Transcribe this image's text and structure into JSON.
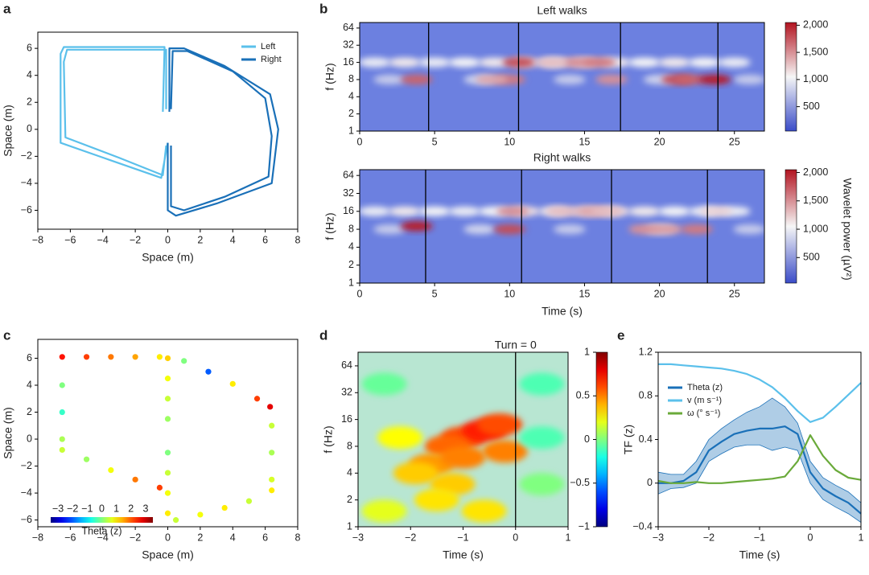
{
  "chart_data": [
    {
      "type": "line",
      "label": "a",
      "xlabel": "Space (m)",
      "ylabel": "Space (m)",
      "xlim": [
        -8,
        8
      ],
      "ylim": [
        -7.4,
        7.2
      ],
      "xticks": [
        {
          "value": -8,
          "label": "−8"
        },
        {
          "value": -6,
          "label": "−6"
        },
        {
          "value": -4,
          "label": "−4"
        },
        {
          "value": -2,
          "label": "−2"
        },
        0,
        2,
        4,
        6,
        8
      ],
      "yticks": [
        {
          "value": -6,
          "label": "−6"
        },
        {
          "value": -4,
          "label": "−4"
        },
        {
          "value": -2,
          "label": "−2"
        },
        0,
        2,
        4,
        6
      ],
      "legend": "upper right",
      "series": [
        {
          "name": "Left",
          "color": "#5bc0eb",
          "x": [
            -0.3,
            -0.2,
            -6.4,
            -6.6,
            -6.6,
            -3.5,
            -0.4,
            0,
            null,
            -0.1,
            -0.1,
            -6.2,
            -6.4,
            -6.3,
            -3,
            -0.3,
            -0.1
          ],
          "values": [
            1.3,
            6.1,
            6.1,
            5.6,
            -1,
            -2.3,
            -3.6,
            -1,
            null,
            1.5,
            5.9,
            5.9,
            5,
            -0.6,
            -2.1,
            -3.4,
            -1.2
          ]
        },
        {
          "name": "Right",
          "color": "#1a70b8",
          "x": [
            0.1,
            0.1,
            1,
            3.5,
            6.3,
            6.8,
            6.4,
            3,
            0.5,
            0,
            0,
            null,
            0.2,
            0.3,
            1.2,
            4,
            6,
            6.4,
            6.2,
            3.5,
            1,
            0.2,
            0.2
          ],
          "values": [
            1.3,
            6,
            6,
            4.7,
            2.6,
            0,
            -4,
            -5.5,
            -6.4,
            -6,
            -1,
            null,
            1.5,
            5.8,
            5.8,
            4.3,
            2.3,
            -0.5,
            -3.5,
            -5,
            -6,
            -5.7,
            -1.2
          ]
        }
      ]
    },
    {
      "type": "heatmap",
      "label": "b",
      "title": "Left walks",
      "ylabel": "f (Hz)",
      "colormap": "coolwarm",
      "ylog": true,
      "xlim": [
        0,
        27
      ],
      "ylim": [
        1,
        80
      ],
      "xticks": [
        0,
        5,
        10,
        15,
        20,
        25
      ],
      "yticks": [
        1,
        2,
        4,
        8,
        16,
        32,
        64
      ],
      "turns": [
        4.6,
        10.6,
        17.4,
        23.9
      ],
      "hotspots": {
        "x": [
          1,
          3,
          5,
          7,
          9,
          11,
          13,
          15,
          17,
          19,
          21,
          23,
          25,
          2,
          8,
          14,
          20,
          26,
          3.8,
          10,
          10.6,
          14.5,
          16,
          16.8,
          21.2,
          22,
          23.7,
          12.8,
          8.8
        ],
        "f": [
          16,
          16,
          16,
          16,
          16,
          16,
          16,
          16,
          16,
          16,
          16,
          16,
          16,
          8,
          8,
          8,
          8,
          8,
          8,
          8,
          16,
          16,
          16,
          8,
          8,
          8,
          8,
          16,
          8
        ],
        "values": [
          1000,
          1100,
          1000,
          1050,
          1100,
          1200,
          1100,
          1150,
          1100,
          1050,
          1100,
          1050,
          1000,
          800,
          850,
          800,
          850,
          800,
          1700,
          1600,
          1800,
          1500,
          1600,
          1500,
          1800,
          1700,
          2000,
          1300,
          1400
        ]
      },
      "colorbar": {
        "lim": [
          50,
          2050
        ],
        "ticks": [
          500,
          {
            "value": 1000,
            "label": "1,000"
          },
          {
            "value": 1500,
            "label": "1,500"
          },
          {
            "value": 2000,
            "label": "2,000"
          }
        ]
      }
    },
    {
      "type": "heatmap",
      "title": "Right walks",
      "ylabel": "f (Hz)",
      "xlabel": "Time (s)",
      "colormap": "coolwarm",
      "ylog": true,
      "xlim": [
        0,
        27
      ],
      "ylim": [
        1,
        80
      ],
      "xticks": [
        0,
        5,
        10,
        15,
        20,
        25
      ],
      "yticks": [
        1,
        2,
        4,
        8,
        16,
        32,
        64
      ],
      "turns": [
        4.4,
        10.8,
        16.8,
        23.2
      ],
      "hotspots": {
        "x": [
          1,
          3,
          5,
          7,
          9,
          11,
          13,
          15,
          17,
          19,
          21,
          23,
          25,
          2,
          8,
          14,
          20,
          26,
          3.8,
          10,
          10.2,
          13.5,
          15.5,
          16.5,
          19,
          20.5,
          22.5,
          23.8
        ],
        "f": [
          16,
          16,
          16,
          16,
          16,
          16,
          16,
          16,
          16,
          16,
          16,
          16,
          16,
          8,
          8,
          8,
          8,
          8,
          9,
          8,
          16,
          16,
          16,
          16,
          8,
          8,
          8,
          16
        ],
        "values": [
          1000,
          1100,
          1050,
          1000,
          1050,
          1150,
          1100,
          1200,
          1150,
          1100,
          1050,
          1000,
          1000,
          800,
          850,
          800,
          900,
          800,
          2000,
          1800,
          1500,
          1300,
          1400,
          1300,
          1500,
          1450,
          1600,
          1200
        ]
      },
      "colorbar": {
        "lim": [
          50,
          2050
        ],
        "ticks": [
          500,
          {
            "value": 1000,
            "label": "1,000"
          },
          {
            "value": 1500,
            "label": "1,500"
          },
          {
            "value": 2000,
            "label": "2,000"
          }
        ],
        "label": "Wavelet power (µV²)"
      }
    },
    {
      "type": "scatter",
      "label": "c",
      "xlabel": "Space (m)",
      "ylabel": "Space (m)",
      "colormap": "jet",
      "xlim": [
        -8,
        8
      ],
      "ylim": [
        -6.5,
        7.4
      ],
      "xticks": [
        {
          "value": -8,
          "label": "−8"
        },
        {
          "value": -6,
          "label": "−6"
        },
        {
          "value": -4,
          "label": "−4"
        },
        {
          "value": -2,
          "label": "−2"
        },
        0,
        2,
        4,
        6,
        8
      ],
      "yticks": [
        {
          "value": -6,
          "label": "−6"
        },
        {
          "value": -4,
          "label": "−4"
        },
        {
          "value": -2,
          "label": "−2"
        },
        0,
        2,
        4,
        6
      ],
      "x": [
        -6.5,
        -5,
        -3.5,
        -2,
        -0.5,
        -6.5,
        -6.5,
        -6.5,
        -6.5,
        -5,
        -3.5,
        -2,
        -0.5,
        0,
        0,
        0,
        0,
        0,
        0,
        0,
        0,
        1,
        2.5,
        4,
        5.5,
        6.3,
        6.4,
        6.4,
        6.4,
        6.4,
        5,
        3.5,
        2,
        0.5
      ],
      "y": [
        6.1,
        6.1,
        6.1,
        6.1,
        6.1,
        4,
        2,
        0,
        -0.8,
        -1.5,
        -2.3,
        -3,
        -3.6,
        6,
        4.5,
        3,
        1.5,
        -1,
        -2.5,
        -4,
        -5.5,
        5.8,
        5,
        4.1,
        3,
        2.4,
        1,
        -1,
        -3,
        -3.8,
        -4.6,
        -5.1,
        -5.6,
        -6
      ],
      "values": [
        2.5,
        2.2,
        1.8,
        1.5,
        1,
        0,
        -0.5,
        0.3,
        0.5,
        0.2,
        0.8,
        1.8,
        2.2,
        1.2,
        0.8,
        0.5,
        0.2,
        0,
        0.5,
        0.8,
        1,
        0,
        -2,
        1,
        2.2,
        2.8,
        0.5,
        0.3,
        0.6,
        1,
        0.5,
        1,
        0.8,
        0.5
      ],
      "colorbar": {
        "lim": [
          -3.5,
          3.5
        ],
        "ticks": [
          {
            "value": -3,
            "label": "−3"
          },
          {
            "value": -2,
            "label": "−2"
          },
          {
            "value": -1,
            "label": "−1"
          },
          0,
          1,
          2,
          3
        ],
        "label": "Theta (z)"
      }
    },
    {
      "type": "heatmap",
      "label": "d",
      "xlabel": "Time (s)",
      "ylabel": "f (Hz)",
      "colormap": "jet",
      "ylog": true,
      "annotation": "Turn = 0",
      "xlim": [
        -3,
        1
      ],
      "ylim": [
        1,
        91
      ],
      "xticks": [
        {
          "value": -3,
          "label": "−3"
        },
        {
          "value": -2,
          "label": "−2"
        },
        {
          "value": -1,
          "label": "−1"
        },
        0,
        1
      ],
      "yticks": [
        1,
        2,
        4,
        8,
        16,
        32,
        64
      ],
      "turns": [
        0
      ],
      "hotspots": {
        "x": [
          -1,
          -0.6,
          -0.3,
          -1.3,
          -1.6,
          -1.9,
          -1.2,
          -1.5,
          -0.6,
          -2.2,
          -1,
          -0.2,
          -2.5,
          0.5,
          0.5,
          -2.5,
          0.5
        ],
        "f": [
          10,
          12,
          14,
          8,
          5,
          4,
          3,
          2,
          1.5,
          10,
          6,
          7,
          1.5,
          10,
          3,
          40,
          40
        ],
        "values": [
          0.6,
          0.7,
          0.6,
          0.55,
          0.45,
          0.35,
          0.35,
          0.3,
          0.3,
          0.25,
          0.5,
          0.5,
          0.2,
          -0.1,
          0,
          -0.05,
          -0.1
        ]
      },
      "colorbar": {
        "lim": [
          -1,
          1
        ],
        "ticks": [
          {
            "value": -1,
            "label": "−1"
          },
          {
            "value": -0.5,
            "label": "−0.5"
          },
          0,
          0.5,
          1
        ]
      }
    },
    {
      "type": "line",
      "label": "e",
      "xlabel": "Time (s)",
      "ylabel": "TF (z)",
      "legend": "upper left",
      "xlim": [
        -3,
        1
      ],
      "ylim": [
        -0.4,
        1.2
      ],
      "xticks": [
        {
          "value": -3,
          "label": "−3"
        },
        {
          "value": -2,
          "label": "−2"
        },
        {
          "value": -1,
          "label": "−1"
        },
        0,
        1
      ],
      "yticks": [
        {
          "value": -0.4,
          "label": "−0.4"
        },
        0,
        0.4,
        0.8,
        1.2
      ],
      "x": [
        -3,
        -2.75,
        -2.5,
        -2.25,
        -2,
        -1.75,
        -1.5,
        -1.25,
        -1,
        -0.75,
        -0.5,
        -0.25,
        0,
        0.25,
        0.5,
        0.75,
        1
      ],
      "series": [
        {
          "name": "Theta (z)",
          "color": "#1a70b8",
          "values": [
            0,
            0,
            0.02,
            0.1,
            0.3,
            0.38,
            0.45,
            0.48,
            0.5,
            0.5,
            0.52,
            0.45,
            0.1,
            -0.05,
            -0.12,
            -0.18,
            -0.28
          ],
          "upper": [
            0.1,
            0.08,
            0.08,
            0.2,
            0.4,
            0.5,
            0.58,
            0.65,
            0.7,
            0.78,
            0.7,
            0.55,
            0.2,
            0.05,
            -0.02,
            -0.08,
            -0.18
          ],
          "lower": [
            -0.1,
            -0.05,
            -0.04,
            0,
            0.2,
            0.27,
            0.33,
            0.35,
            0.35,
            0.3,
            0.33,
            0.3,
            0,
            -0.15,
            -0.22,
            -0.28,
            -0.36
          ]
        },
        {
          "name": "v (m s⁻¹)",
          "color": "#5bc0eb",
          "values": [
            1.09,
            1.09,
            1.08,
            1.07,
            1.06,
            1.05,
            1.03,
            1,
            0.95,
            0.88,
            0.78,
            0.66,
            0.56,
            0.6,
            0.7,
            0.81,
            0.92
          ]
        },
        {
          "name": "ω (° s⁻¹)",
          "color": "#6aaa3a",
          "values": [
            0.02,
            0,
            0,
            0.01,
            0,
            0,
            0.01,
            0.02,
            0.03,
            0.04,
            0.06,
            0.2,
            0.44,
            0.25,
            0.12,
            0.05,
            0.03
          ]
        }
      ]
    }
  ]
}
